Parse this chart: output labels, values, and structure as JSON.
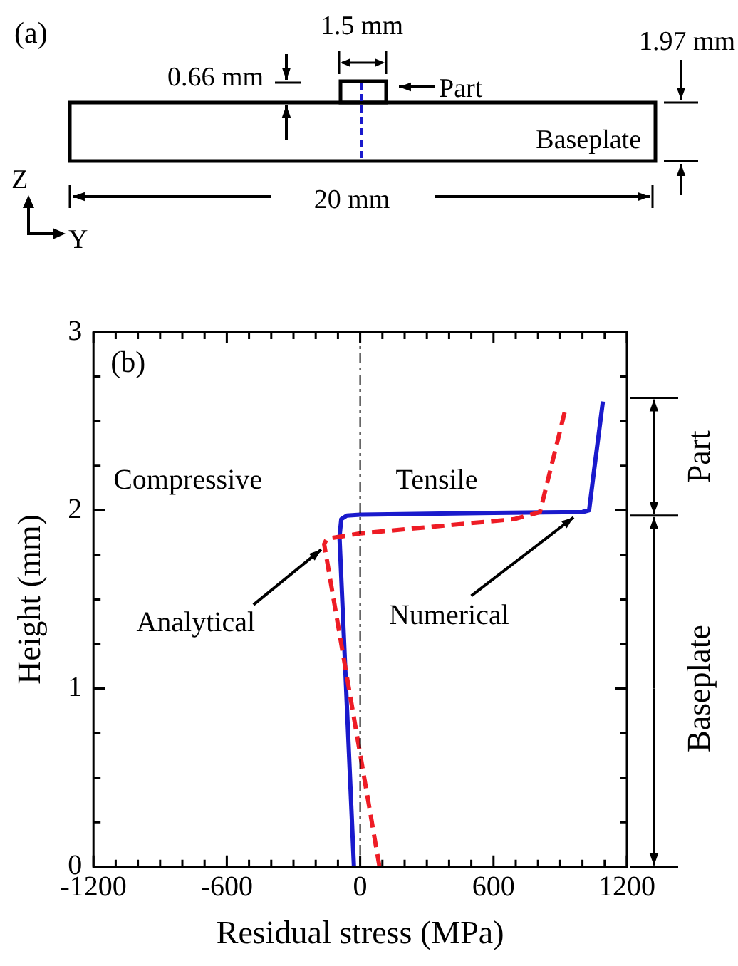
{
  "chart_data": {
    "type": "line",
    "annotations": [
      "(a)",
      "1.5 mm",
      "0.66 mm",
      "Part",
      "1.97 mm",
      "Baseplate",
      "20 mm",
      "Z",
      "Y",
      "(b)",
      "Compressive",
      "Tensile",
      "Part",
      "Baseplate"
    ],
    "xlabel": "Residual stress (MPa)",
    "ylabel": "Height (mm)",
    "xlim": [
      -1200,
      1200
    ],
    "xticks": [
      -1200,
      {
        "value": -1100,
        "label": null
      },
      {
        "value": -1000,
        "label": null
      },
      {
        "value": -900,
        "label": null
      },
      {
        "value": -800,
        "label": null
      },
      {
        "value": -700,
        "label": null
      },
      -600,
      {
        "value": -500,
        "label": null
      },
      {
        "value": -400,
        "label": null
      },
      {
        "value": -300,
        "label": null
      },
      {
        "value": -200,
        "label": null
      },
      {
        "value": -100,
        "label": null
      },
      0,
      {
        "value": 100,
        "label": null
      },
      {
        "value": 200,
        "label": null
      },
      {
        "value": 300,
        "label": null
      },
      {
        "value": 400,
        "label": null
      },
      {
        "value": 500,
        "label": null
      },
      600,
      {
        "value": 700,
        "label": null
      },
      {
        "value": 800,
        "label": null
      },
      {
        "value": 900,
        "label": null
      },
      {
        "value": 1000,
        "label": null
      },
      {
        "value": 1100,
        "label": null
      },
      1200
    ],
    "ylim": [
      0,
      3
    ],
    "yticks": [
      0,
      {
        "value": 0.25,
        "label": null
      },
      {
        "value": 0.5,
        "label": null
      },
      {
        "value": 0.75,
        "label": null
      },
      1,
      {
        "value": 1.25,
        "label": null
      },
      {
        "value": 1.5,
        "label": null
      },
      {
        "value": 1.75,
        "label": null
      },
      2,
      {
        "value": 2.25,
        "label": null
      },
      {
        "value": 2.5,
        "label": null
      },
      {
        "value": 2.75,
        "label": null
      },
      3
    ],
    "ref_lines": [
      {
        "axis": "x",
        "value": 0,
        "color": "#000000",
        "line_style": "dashed"
      }
    ],
    "series": [
      {
        "name": "Analytical",
        "color": "#ee1c25",
        "line_style": "dashed",
        "x": [
          87,
          -162,
          -150,
          0,
          693,
          809,
          924
        ],
        "values": [
          0,
          1.81,
          1.84,
          1.87,
          1.95,
          1.99,
          2.57
        ]
      },
      {
        "name": "Numerical",
        "color": "#1a1acc",
        "line_style": "solid",
        "x": [
          -28,
          -93,
          -85,
          -60,
          0,
          600,
          1000,
          1030,
          1050,
          1092
        ],
        "values": [
          0,
          1.85,
          1.95,
          1.97,
          1.975,
          1.985,
          1.99,
          2.0,
          2.2,
          2.61
        ]
      }
    ]
  }
}
